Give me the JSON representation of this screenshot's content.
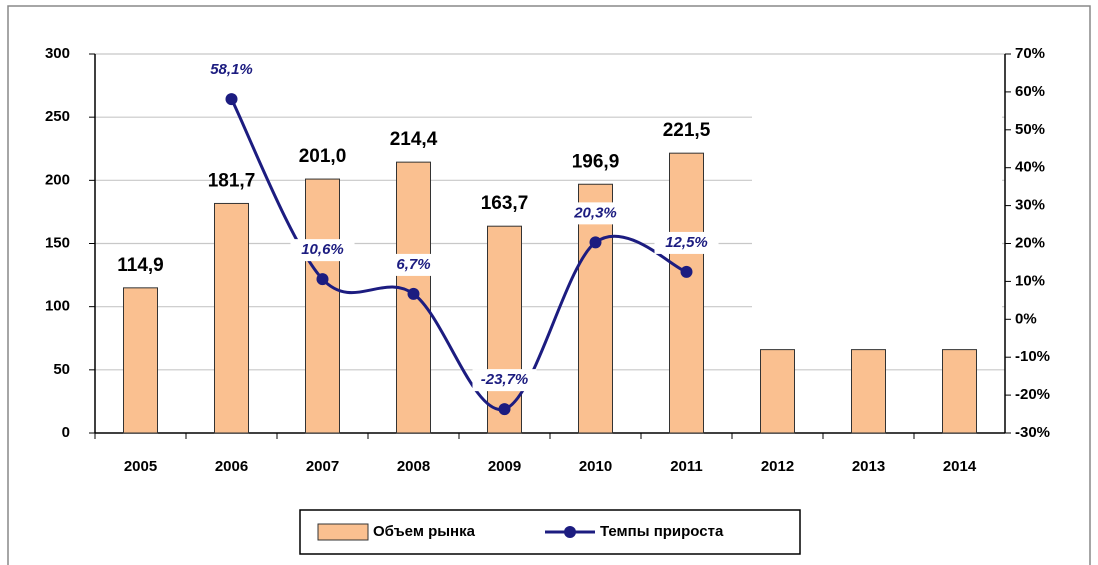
{
  "chart_data": {
    "type": "bar-line",
    "categories": [
      "2005",
      "2006",
      "2007",
      "2008",
      "2009",
      "2010",
      "2011",
      "2012",
      "2013",
      "2014"
    ],
    "series": [
      {
        "name": "Объем рынка",
        "type": "bar",
        "color": "#fac090",
        "values": [
          114.9,
          181.7,
          201.0,
          214.4,
          163.7,
          196.9,
          221.5,
          66,
          66,
          66
        ],
        "value_labels": [
          "114,9",
          "181,7",
          "201,0",
          "214,4",
          "163,7",
          "196,9",
          "221,5",
          null,
          null,
          null
        ]
      },
      {
        "name": "Темпы прироста",
        "type": "line",
        "axis": "y2",
        "color": "#1c1c80",
        "values": [
          null,
          58.1,
          10.6,
          6.7,
          -23.7,
          20.3,
          12.5,
          null,
          null,
          null
        ],
        "value_labels": [
          null,
          "58,1%",
          "10,6%",
          "6,7%",
          "-23,7%",
          "20,3%",
          "12,5%",
          null,
          null,
          null
        ]
      }
    ],
    "ylim": [
      0,
      300
    ],
    "yticks": [
      0,
      50,
      100,
      150,
      200,
      250,
      300
    ],
    "y2lim": [
      -30,
      70
    ],
    "y2ticks": [
      {
        "value": -30,
        "label": "-30%"
      },
      {
        "value": -20,
        "label": "-20%"
      },
      {
        "value": -10,
        "label": "-10%"
      },
      {
        "value": 0,
        "label": "0%"
      },
      {
        "value": 10,
        "label": "10%"
      },
      {
        "value": 20,
        "label": "20%"
      },
      {
        "value": 30,
        "label": "30%"
      },
      {
        "value": 40,
        "label": "40%"
      },
      {
        "value": 50,
        "label": "50%"
      },
      {
        "value": 60,
        "label": "60%"
      },
      {
        "value": 70,
        "label": "70%"
      }
    ],
    "grid": true,
    "legend": "bottom"
  }
}
